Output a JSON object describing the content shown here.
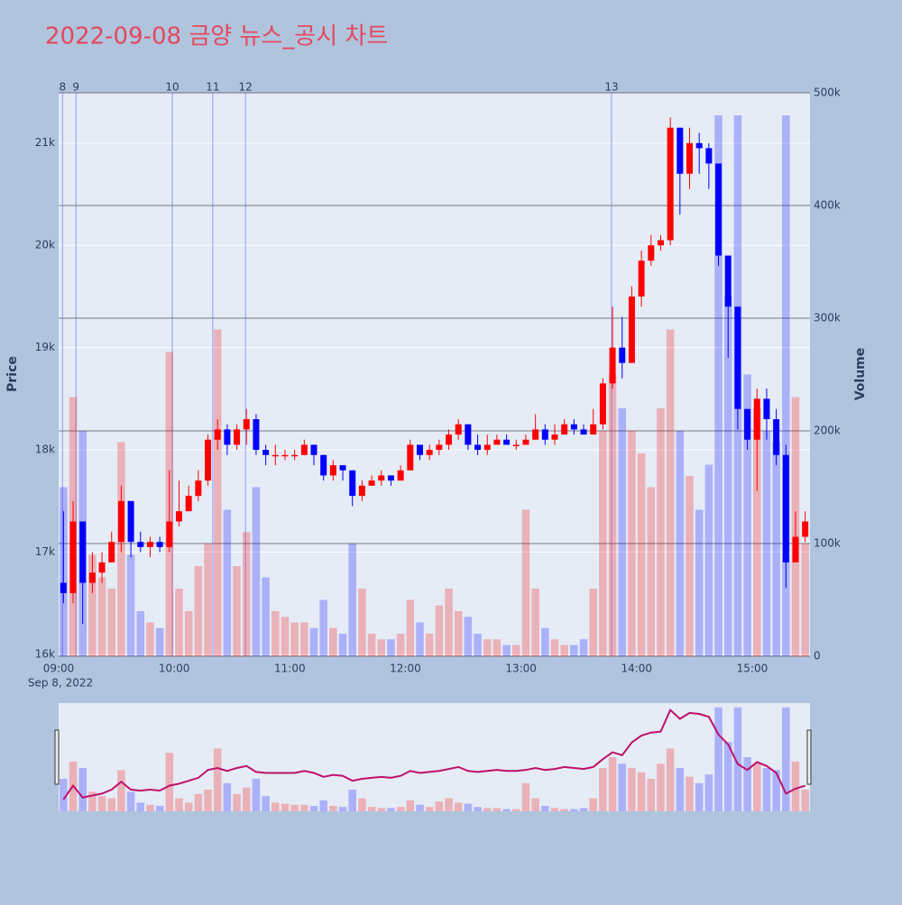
{
  "chart_data": {
    "type": "candlestick",
    "title": "2022-09-08 금양 뉴스_공시 차트",
    "y_label": "Price",
    "y2_label": "Volume",
    "x_date_label": "Sep 8, 2022",
    "increasing_color": "#ff0000",
    "decreasing_color": "#0000ff",
    "x": [
      "09:00",
      "09:05",
      "09:10",
      "09:15",
      "09:20",
      "09:25",
      "09:30",
      "09:35",
      "09:40",
      "09:45",
      "09:50",
      "09:55",
      "10:00",
      "10:05",
      "10:10",
      "10:15",
      "10:20",
      "10:25",
      "10:30",
      "10:35",
      "10:40",
      "10:45",
      "10:50",
      "10:55",
      "11:00",
      "11:05",
      "11:10",
      "11:15",
      "11:20",
      "11:25",
      "11:30",
      "11:35",
      "11:40",
      "11:45",
      "11:50",
      "11:55",
      "12:00",
      "12:05",
      "12:10",
      "12:15",
      "12:20",
      "12:25",
      "12:30",
      "12:35",
      "12:40",
      "12:45",
      "12:50",
      "12:55",
      "13:00",
      "13:05",
      "13:10",
      "13:15",
      "13:20",
      "13:25",
      "13:30",
      "13:35",
      "13:40",
      "13:45",
      "13:50",
      "13:55",
      "14:00",
      "14:05",
      "14:10",
      "14:15",
      "14:20",
      "14:25",
      "14:30",
      "14:35",
      "14:40",
      "14:45",
      "14:50",
      "14:55",
      "15:00",
      "15:05",
      "15:10",
      "15:15",
      "15:20",
      "15:25"
    ],
    "open": [
      16700,
      16600,
      17300,
      16700,
      16800,
      16900,
      17100,
      17500,
      17100,
      17050,
      17100,
      17050,
      17300,
      17400,
      17550,
      17700,
      18100,
      18200,
      18050,
      18200,
      18300,
      18000,
      17950,
      17950,
      17950,
      17950,
      18050,
      17950,
      17750,
      17850,
      17800,
      17550,
      17650,
      17700,
      17750,
      17700,
      17800,
      18050,
      17950,
      18000,
      18050,
      18150,
      18250,
      18050,
      18000,
      18050,
      18100,
      18050,
      18050,
      18100,
      18200,
      18100,
      18150,
      18250,
      18200,
      18150,
      18250,
      18650,
      19000,
      18850,
      19500,
      19850,
      20000,
      20050,
      21150,
      20700,
      21000,
      20950,
      20800,
      19900,
      19400,
      18400,
      18100,
      18500,
      18300,
      17950,
      16900,
      17150
    ],
    "high": [
      17400,
      17500,
      17300,
      17000,
      17000,
      17200,
      17650,
      17500,
      17200,
      17150,
      17150,
      17800,
      17700,
      17650,
      17800,
      18150,
      18300,
      18250,
      18250,
      18400,
      18350,
      18050,
      18050,
      18000,
      18000,
      18100,
      18050,
      17950,
      17900,
      17850,
      17800,
      17700,
      17750,
      17800,
      17750,
      17850,
      18100,
      18050,
      18050,
      18100,
      18200,
      18300,
      18250,
      18150,
      18150,
      18150,
      18150,
      18100,
      18150,
      18350,
      18250,
      18250,
      18300,
      18300,
      18250,
      18400,
      18700,
      19400,
      19300,
      19600,
      19950,
      20100,
      20100,
      21250,
      21150,
      21150,
      21100,
      21000,
      20800,
      19900,
      19400,
      18400,
      18600,
      18600,
      18400,
      18050,
      17400,
      17400
    ],
    "low": [
      16500,
      16500,
      16300,
      16600,
      16700,
      16900,
      17000,
      16950,
      17000,
      16950,
      17000,
      17000,
      17250,
      17400,
      17500,
      17650,
      18000,
      17950,
      18000,
      18050,
      17950,
      17850,
      17850,
      17900,
      17900,
      17950,
      17850,
      17700,
      17700,
      17700,
      17450,
      17500,
      17650,
      17650,
      17650,
      17700,
      17800,
      17900,
      17900,
      17950,
      18000,
      18100,
      18000,
      17950,
      17950,
      18050,
      18050,
      18000,
      18050,
      18100,
      18050,
      18050,
      18150,
      18150,
      18150,
      18150,
      18200,
      18600,
      18700,
      18850,
      19400,
      19800,
      19950,
      20000,
      20300,
      20550,
      20700,
      20550,
      19800,
      18900,
      18200,
      18000,
      17600,
      18100,
      17850,
      16650,
      16900,
      17100
    ],
    "close": [
      16600,
      17300,
      16700,
      16800,
      16900,
      17100,
      17500,
      17100,
      17050,
      17100,
      17050,
      17300,
      17400,
      17550,
      17700,
      18100,
      18200,
      18050,
      18200,
      18300,
      18000,
      17950,
      17950,
      17950,
      17950,
      18050,
      17950,
      17750,
      17850,
      17800,
      17550,
      17650,
      17700,
      17750,
      17700,
      17800,
      18050,
      17950,
      18000,
      18050,
      18150,
      18250,
      18050,
      18000,
      18050,
      18100,
      18050,
      18050,
      18100,
      18200,
      18100,
      18150,
      18250,
      18200,
      18150,
      18250,
      18650,
      19000,
      18850,
      19500,
      19850,
      20000,
      20050,
      21150,
      20700,
      21000,
      20950,
      20800,
      19900,
      19400,
      18400,
      18100,
      18500,
      18300,
      17950,
      16900,
      17150,
      17300
    ],
    "volume": [
      150000,
      230000,
      200000,
      90000,
      70000,
      60000,
      190000,
      90000,
      40000,
      30000,
      25000,
      270000,
      60000,
      40000,
      80000,
      100000,
      290000,
      130000,
      80000,
      110000,
      150000,
      70000,
      40000,
      35000,
      30000,
      30000,
      25000,
      50000,
      25000,
      20000,
      100000,
      60000,
      20000,
      15000,
      15000,
      20000,
      50000,
      30000,
      20000,
      45000,
      60000,
      40000,
      35000,
      20000,
      15000,
      15000,
      10000,
      10000,
      130000,
      60000,
      25000,
      15000,
      10000,
      10000,
      15000,
      60000,
      200000,
      250000,
      220000,
      200000,
      180000,
      150000,
      220000,
      290000,
      200000,
      160000,
      130000,
      170000,
      480000,
      320000,
      480000,
      250000,
      220000,
      200000,
      190000,
      480000,
      230000,
      100000
    ],
    "xlim": [
      "09:00",
      "15:30"
    ],
    "xticks": [
      "09:00",
      "10:00",
      "11:00",
      "12:00",
      "13:00",
      "14:00",
      "15:00"
    ],
    "ylim": [
      16000,
      21500
    ],
    "yticks": [
      {
        "value": 16000,
        "label": "16k"
      },
      {
        "value": 17000,
        "label": "17k"
      },
      {
        "value": 18000,
        "label": "18k"
      },
      {
        "value": 19000,
        "label": "19k"
      },
      {
        "value": 20000,
        "label": "20k"
      },
      {
        "value": 21000,
        "label": "21k"
      }
    ],
    "y2lim": [
      0,
      500000
    ],
    "y2ticks": [
      0,
      {
        "value": 100000,
        "label": "100k"
      },
      {
        "value": 200000,
        "label": "200k"
      },
      {
        "value": 300000,
        "label": "300k"
      },
      {
        "value": 400000,
        "label": "400k"
      },
      {
        "value": 500000,
        "label": "500k"
      }
    ],
    "annotations": [
      {
        "x": "09:02",
        "label": "8"
      },
      {
        "x": "09:09",
        "label": "9"
      },
      {
        "x": "09:59",
        "label": "10"
      },
      {
        "x": "10:20",
        "label": "11"
      },
      {
        "x": "10:37",
        "label": "12"
      },
      {
        "x": "13:47",
        "label": "13"
      }
    ]
  }
}
